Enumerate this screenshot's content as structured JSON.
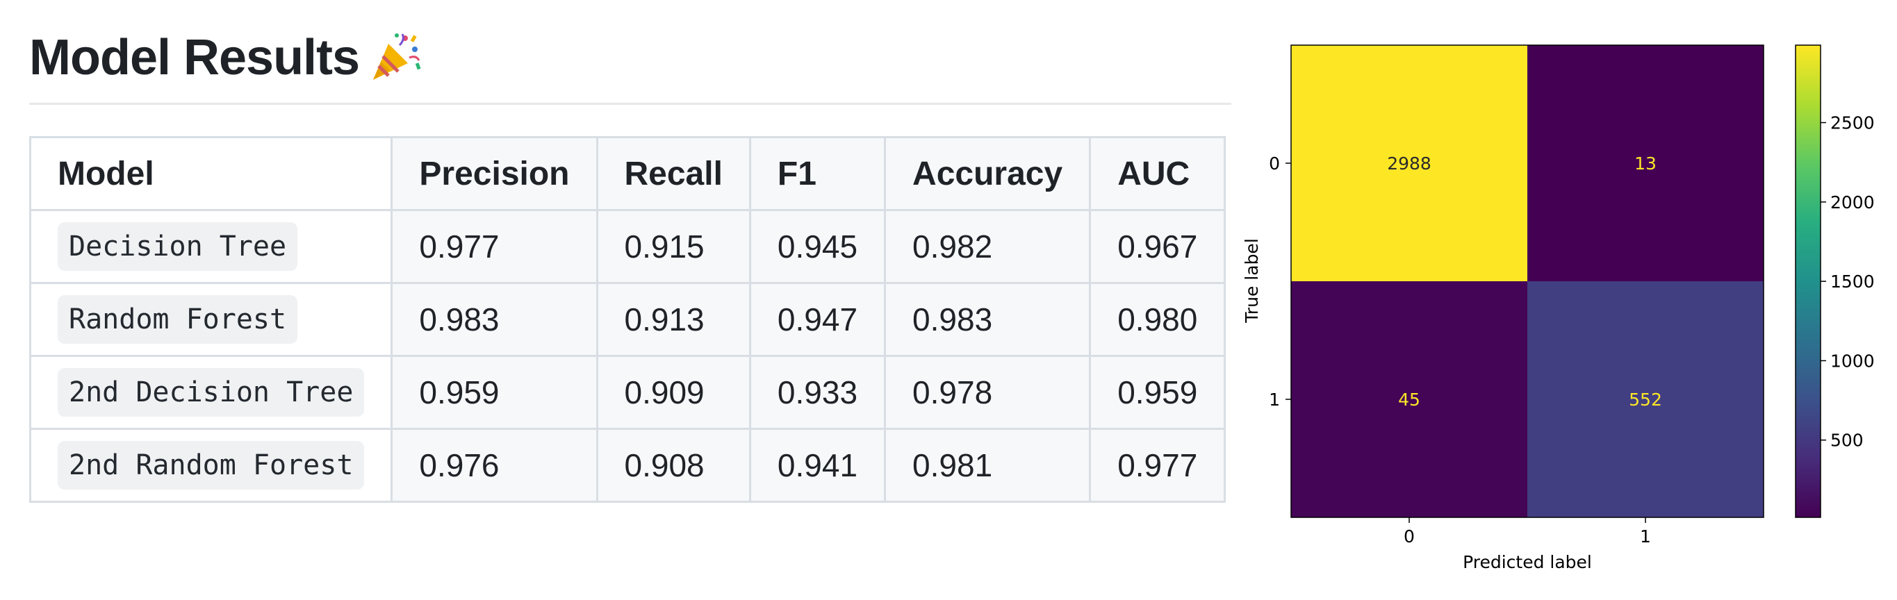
{
  "page": {
    "title": "Model Results",
    "title_emoji": "party-popper-icon"
  },
  "table": {
    "headers": [
      "Model",
      "Precision",
      "Recall",
      "F1",
      "Accuracy",
      "AUC"
    ],
    "rows": [
      {
        "model": "Decision Tree",
        "values": [
          "0.977",
          "0.915",
          "0.945",
          "0.982",
          "0.967"
        ]
      },
      {
        "model": "Random Forest",
        "values": [
          "0.983",
          "0.913",
          "0.947",
          "0.983",
          "0.980"
        ]
      },
      {
        "model": "2nd Decision Tree",
        "values": [
          "0.959",
          "0.909",
          "0.933",
          "0.978",
          "0.959"
        ]
      },
      {
        "model": "2nd Random Forest",
        "values": [
          "0.976",
          "0.908",
          "0.941",
          "0.981",
          "0.977"
        ]
      }
    ]
  },
  "chart_data": {
    "type": "heatmap",
    "title": "",
    "xlabel": "Predicted label",
    "ylabel": "True label",
    "x_categories": [
      "0",
      "1"
    ],
    "y_categories": [
      "0",
      "1"
    ],
    "values": [
      [
        2988,
        13
      ],
      [
        45,
        552
      ]
    ],
    "colormap": "viridis",
    "colorbar": {
      "ticks": [
        500,
        1000,
        1500,
        2000,
        2500
      ],
      "range": [
        13,
        2988
      ]
    },
    "annotation_colors": {
      "on_light": "#2a2a2a",
      "on_dark": "#fde725"
    }
  }
}
